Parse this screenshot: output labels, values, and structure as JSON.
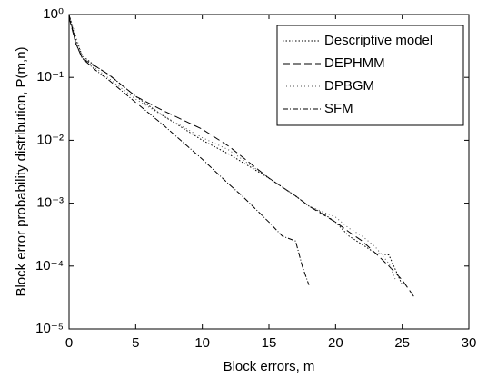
{
  "chart_data": {
    "type": "line",
    "xlabel": "Block errors, m",
    "ylabel": "Block error probability distribution, P(m,n)",
    "xlim": [
      0,
      30
    ],
    "xticks": [
      0,
      5,
      10,
      15,
      20,
      25,
      30
    ],
    "ylim": [
      1e-05,
      1
    ],
    "log_y": true,
    "yticks": [
      {
        "value": 1e-05,
        "label": "10⁻⁵"
      },
      {
        "value": 0.0001,
        "label": "10⁻⁴"
      },
      {
        "value": 0.001,
        "label": "10⁻³"
      },
      {
        "value": 0.01,
        "label": "10⁻²"
      },
      {
        "value": 0.1,
        "label": "10⁻¹"
      },
      {
        "value": 1,
        "label": "10⁰"
      }
    ],
    "grid": false,
    "legend": "upper right",
    "series": [
      {
        "name": "Descriptive model",
        "color": "#000000",
        "dash": "1.5,2",
        "x": [
          0,
          0.5,
          1,
          2,
          3,
          5,
          7,
          10,
          12,
          15,
          17,
          18,
          19,
          20,
          21,
          22,
          23,
          24,
          25
        ],
        "values": [
          1,
          0.4,
          0.22,
          0.15,
          0.11,
          0.05,
          0.025,
          0.01,
          0.006,
          0.0025,
          0.0013,
          0.0009,
          0.0007,
          0.0005,
          0.0003,
          0.00022,
          0.00016,
          0.00015,
          5e-05
        ]
      },
      {
        "name": "DEPHMM",
        "color": "#000000",
        "dash": "8,4",
        "x": [
          0,
          0.5,
          1,
          2,
          3,
          5,
          7,
          10,
          12,
          15,
          17,
          18,
          20,
          21,
          22,
          23,
          24,
          25,
          26
        ],
        "values": [
          0.9,
          0.35,
          0.2,
          0.15,
          0.11,
          0.05,
          0.03,
          0.015,
          0.008,
          0.0025,
          0.0013,
          0.0009,
          0.0005,
          0.00035,
          0.00025,
          0.00016,
          0.0001,
          6e-05,
          3e-05
        ]
      },
      {
        "name": "DPBGM",
        "color": "#555555",
        "dash": "1,3",
        "x": [
          0,
          1,
          2,
          5,
          7,
          10,
          12,
          15,
          17,
          18,
          20,
          21,
          22,
          23,
          24,
          24.5
        ],
        "values": [
          1,
          0.21,
          0.14,
          0.045,
          0.025,
          0.011,
          0.007,
          0.0025,
          0.0013,
          0.0009,
          0.0006,
          0.0004,
          0.0003,
          0.0002,
          0.00011,
          6e-05
        ]
      },
      {
        "name": "SFM",
        "color": "#000000",
        "dash": "6,2,1,2",
        "x": [
          0,
          0.5,
          1,
          2,
          3,
          5,
          7,
          10,
          12,
          13,
          15,
          16,
          17,
          17.5,
          18
        ],
        "values": [
          1,
          0.35,
          0.2,
          0.13,
          0.09,
          0.04,
          0.018,
          0.005,
          0.002,
          0.0013,
          0.0005,
          0.0003,
          0.00025,
          0.0001,
          5e-05
        ]
      }
    ]
  }
}
